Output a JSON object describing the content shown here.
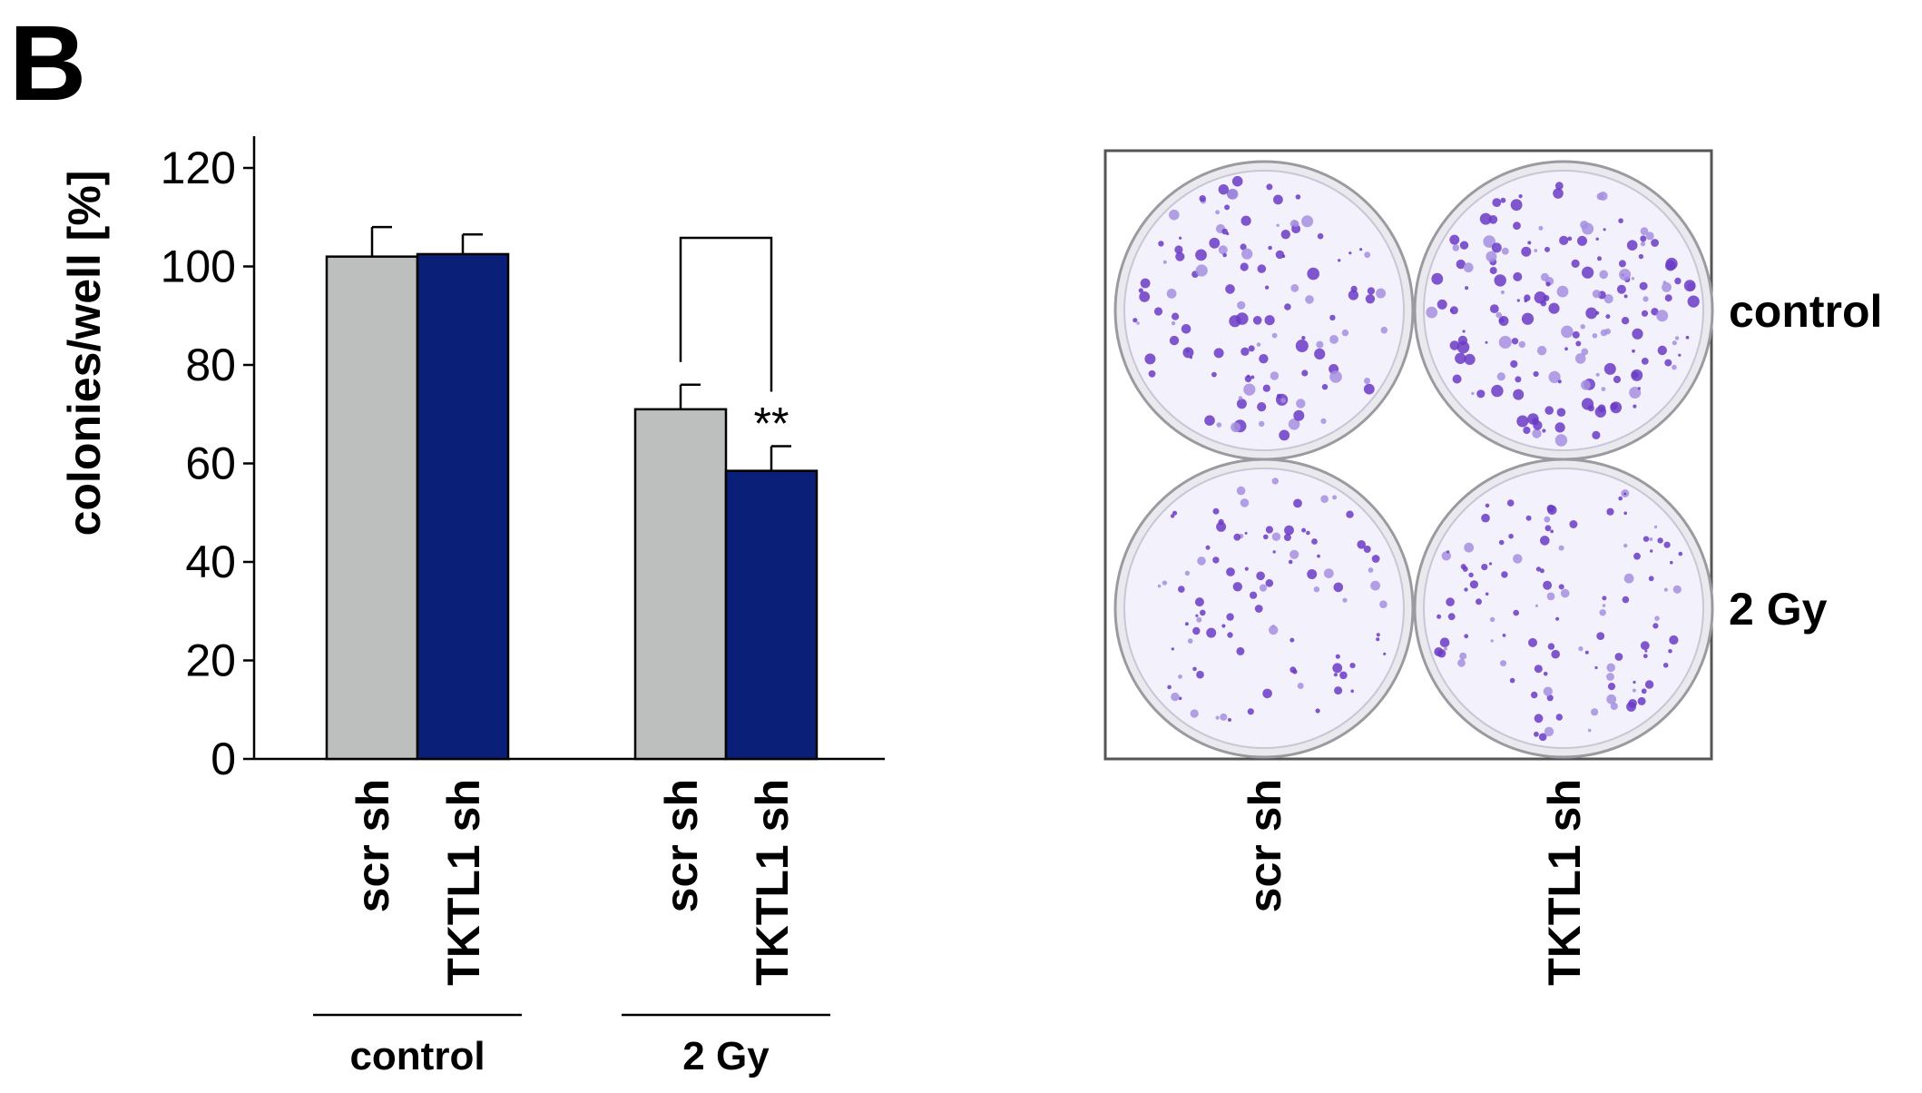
{
  "panel_label": "B",
  "colors": {
    "scr": "#bdbfbf",
    "tktl": "#0a1f78",
    "plate_bg": "#f3f1fb",
    "colony": "#6a3bc4",
    "colony_light": "#a58fe0"
  },
  "chart_data": {
    "type": "bar",
    "ylabel": "colonies/well [%]",
    "ylim": [
      0,
      120
    ],
    "yticks": [
      0,
      20,
      40,
      60,
      80,
      100,
      120
    ],
    "groups": [
      {
        "name": "control",
        "bars": [
          {
            "label": "scr sh",
            "value": 102,
            "error": 6,
            "color_key": "scr"
          },
          {
            "label": "TKTL1 sh",
            "value": 102.5,
            "error": 4,
            "color_key": "tktl"
          }
        ]
      },
      {
        "name": "2 Gy",
        "bars": [
          {
            "label": "scr sh",
            "value": 71,
            "error": 5,
            "color_key": "scr"
          },
          {
            "label": "TKTL1 sh",
            "value": 58.5,
            "error": 5,
            "color_key": "tktl"
          }
        ]
      }
    ],
    "significance": {
      "group": "2 Gy",
      "label": "**"
    }
  },
  "plates": {
    "columns": [
      "scr sh",
      "TKTL1 sh"
    ],
    "rows": [
      "control",
      "2 Gy"
    ]
  }
}
